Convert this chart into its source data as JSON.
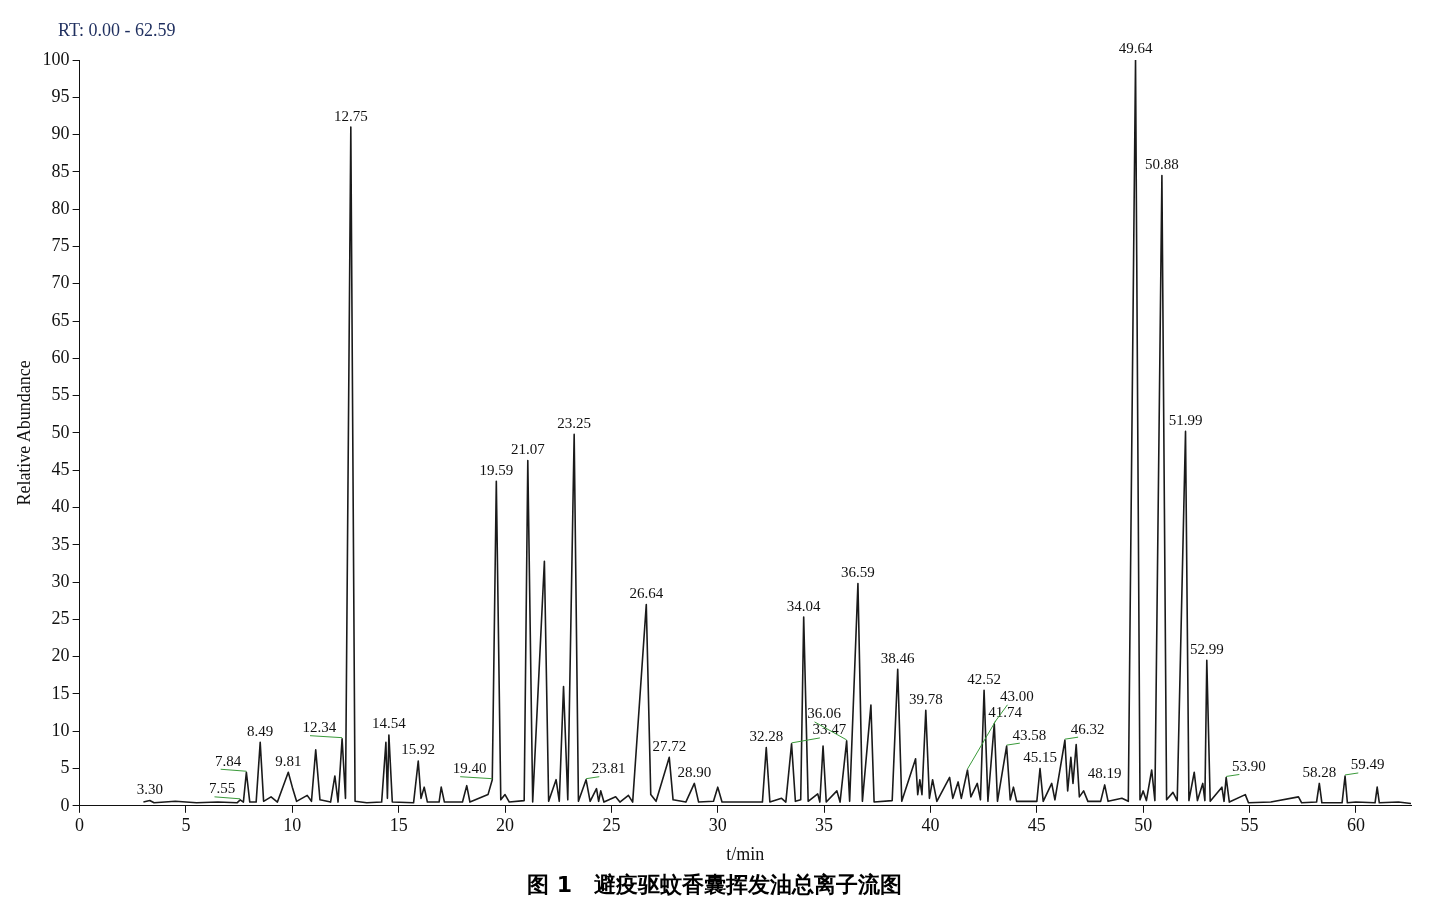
{
  "chart_data": {
    "type": "line",
    "title": "图 1　避疫驱蚊香囊挥发油总离子流图",
    "xlabel": "t/min",
    "ylabel": "Relative Abundance",
    "xlim": [
      0,
      62.59
    ],
    "xticks": [
      0,
      5,
      10,
      15,
      20,
      25,
      30,
      35,
      40,
      45,
      50,
      55,
      60
    ],
    "ylim": [
      0,
      100
    ],
    "yticks": [
      0,
      5,
      10,
      15,
      20,
      25,
      30,
      35,
      40,
      45,
      50,
      55,
      60,
      65,
      70,
      75,
      80,
      85,
      90,
      95,
      100
    ],
    "grid": false,
    "legend": false,
    "marker": "none",
    "line_style": "solid",
    "series": [
      {
        "color": "#1a1a1a",
        "x": [
          3.0,
          3.3,
          3.5,
          4.5,
          5.5,
          6.5,
          7.4,
          7.55,
          7.7,
          7.84,
          8.0,
          8.3,
          8.49,
          8.65,
          9.0,
          9.3,
          9.81,
          10.0,
          10.2,
          10.7,
          10.9,
          11.1,
          11.3,
          11.8,
          12.0,
          12.15,
          12.34,
          12.5,
          12.75,
          12.95,
          13.5,
          14.2,
          14.4,
          14.47,
          14.54,
          14.7,
          15.7,
          15.92,
          16.05,
          16.2,
          16.35,
          16.9,
          17.0,
          17.15,
          18.0,
          18.2,
          18.35,
          19.2,
          19.4,
          19.59,
          19.8,
          20.0,
          20.2,
          20.9,
          21.07,
          21.3,
          21.85,
          22.05,
          22.4,
          22.55,
          22.75,
          22.95,
          23.25,
          23.45,
          23.81,
          24.0,
          24.3,
          24.4,
          24.5,
          24.65,
          25.2,
          25.4,
          25.8,
          26.0,
          26.64,
          26.85,
          27.1,
          27.72,
          27.9,
          28.5,
          28.9,
          29.1,
          29.8,
          30.0,
          30.2,
          31.5,
          32.1,
          32.28,
          32.45,
          33.0,
          33.2,
          33.47,
          33.65,
          33.9,
          34.04,
          34.25,
          34.7,
          34.8,
          34.95,
          35.1,
          35.6,
          35.75,
          36.06,
          36.2,
          36.59,
          36.8,
          37.2,
          37.35,
          38.2,
          38.46,
          38.65,
          39.3,
          39.4,
          39.5,
          39.6,
          39.78,
          39.95,
          40.1,
          40.3,
          40.9,
          41.05,
          41.3,
          41.45,
          41.74,
          41.9,
          42.2,
          42.35,
          42.52,
          42.7,
          43.0,
          43.15,
          43.58,
          43.75,
          43.9,
          44.05,
          45.0,
          45.15,
          45.3,
          45.7,
          45.85,
          46.32,
          46.45,
          46.6,
          46.7,
          46.85,
          47.0,
          47.2,
          47.4,
          48.0,
          48.19,
          48.35,
          49.0,
          49.3,
          49.64,
          49.85,
          50.0,
          50.15,
          50.4,
          50.55,
          50.88,
          51.1,
          51.4,
          51.6,
          51.99,
          52.15,
          52.4,
          52.55,
          52.8,
          52.9,
          52.99,
          53.15,
          53.7,
          53.8,
          53.9,
          54.05,
          54.8,
          54.95,
          56.0,
          57.3,
          57.45,
          58.15,
          58.28,
          58.4,
          59.35,
          59.49,
          59.6,
          60.0,
          60.9,
          61.0,
          61.1,
          62.0,
          62.59
        ],
        "values": [
          0.5,
          0.7,
          0.4,
          0.6,
          0.4,
          0.5,
          0.4,
          0.8,
          0.5,
          4.5,
          0.5,
          0.5,
          8.5,
          0.6,
          1.2,
          0.5,
          4.5,
          2.5,
          0.6,
          1.4,
          0.6,
          7.5,
          0.8,
          0.5,
          4,
          0.5,
          9,
          1,
          91,
          0.6,
          0.4,
          0.5,
          8.5,
          1,
          9.5,
          0.5,
          0.4,
          6,
          1,
          2.5,
          0.5,
          0.5,
          2.5,
          0.5,
          0.5,
          2.7,
          0.5,
          1.5,
          3.5,
          43.5,
          0.8,
          1.5,
          0.5,
          0.7,
          46.3,
          0.5,
          32.8,
          0.6,
          3.5,
          0.6,
          16,
          0.8,
          49.8,
          0.6,
          3.5,
          0.6,
          2.3,
          0.6,
          2,
          0.5,
          1.2,
          0.5,
          1.4,
          0.5,
          27,
          1.5,
          0.6,
          6.5,
          0.8,
          0.5,
          3,
          0.5,
          0.6,
          2.5,
          0.5,
          0.5,
          0.5,
          7.8,
          0.5,
          1,
          0.5,
          8.3,
          0.6,
          0.8,
          25.3,
          0.6,
          1.6,
          0.5,
          8,
          0.5,
          2,
          0.5,
          8.7,
          0.6,
          29.8,
          0.6,
          13.5,
          0.5,
          0.7,
          18.3,
          0.6,
          6.3,
          1.5,
          3.5,
          1.5,
          12.8,
          1,
          3.5,
          0.6,
          3.8,
          1,
          3.2,
          1,
          4.8,
          1.2,
          3,
          0.8,
          15.5,
          0.6,
          11,
          0.6,
          8,
          0.8,
          2.5,
          0.6,
          0.6,
          5,
          0.6,
          3,
          0.8,
          8.8,
          2,
          6.5,
          3,
          8.2,
          1.2,
          2,
          0.6,
          0.6,
          2.8,
          0.6,
          1,
          0.6,
          100,
          0.8,
          2,
          0.7,
          4.8,
          0.7,
          84.5,
          0.8,
          1.8,
          0.7,
          50.2,
          0.7,
          4.5,
          0.7,
          3,
          0.7,
          19.5,
          0.6,
          2.5,
          0.6,
          3.8,
          0.5,
          1.5,
          0.4,
          0.5,
          1.2,
          0.4,
          0.5,
          3,
          0.4,
          0.4,
          4,
          0.4,
          0.5,
          0.4,
          2.5,
          0.4,
          0.5,
          0.3
        ]
      }
    ],
    "annotations": [
      "RT: 0.00 - 62.59",
      {
        "text": "3.30",
        "x": 3.3,
        "y": 0.7
      },
      {
        "text": "7.55",
        "x": 7.55,
        "y": 0.8
      },
      {
        "text": "7.84",
        "x": 7.84,
        "y": 4.5
      },
      {
        "text": "8.49",
        "x": 8.49,
        "y": 8.5
      },
      {
        "text": "9.81",
        "x": 9.81,
        "y": 4.5
      },
      {
        "text": "12.34",
        "x": 12.34,
        "y": 9
      },
      {
        "text": "12.75",
        "x": 12.75,
        "y": 91
      },
      {
        "text": "14.54",
        "x": 14.54,
        "y": 9.5
      },
      {
        "text": "15.92",
        "x": 15.92,
        "y": 6
      },
      {
        "text": "19.40",
        "x": 19.4,
        "y": 3.5
      },
      {
        "text": "19.59",
        "x": 19.59,
        "y": 43.5
      },
      {
        "text": "21.07",
        "x": 21.07,
        "y": 46.3
      },
      {
        "text": "23.25",
        "x": 23.25,
        "y": 49.8
      },
      {
        "text": "23.81",
        "x": 23.81,
        "y": 3.5
      },
      {
        "text": "26.64",
        "x": 26.64,
        "y": 27
      },
      {
        "text": "27.72",
        "x": 27.72,
        "y": 6.5
      },
      {
        "text": "28.90",
        "x": 28.9,
        "y": 3
      },
      {
        "text": "32.28",
        "x": 32.28,
        "y": 7.8
      },
      {
        "text": "33.47",
        "x": 33.47,
        "y": 8.3
      },
      {
        "text": "34.04",
        "x": 34.04,
        "y": 25.3
      },
      {
        "text": "36.06",
        "x": 36.06,
        "y": 8.7
      },
      {
        "text": "36.59",
        "x": 36.59,
        "y": 29.8
      },
      {
        "text": "38.46",
        "x": 38.46,
        "y": 18.3
      },
      {
        "text": "39.78",
        "x": 39.78,
        "y": 12.8
      },
      {
        "text": "41.74",
        "x": 41.74,
        "y": 4.8
      },
      {
        "text": "42.52",
        "x": 42.52,
        "y": 15.5
      },
      {
        "text": "43.00",
        "x": 43.0,
        "y": 11
      },
      {
        "text": "43.58",
        "x": 43.58,
        "y": 8
      },
      {
        "text": "45.15",
        "x": 45.15,
        "y": 5
      },
      {
        "text": "46.32",
        "x": 46.32,
        "y": 8.8
      },
      {
        "text": "48.19",
        "x": 48.19,
        "y": 2.8
      },
      {
        "text": "49.64",
        "x": 49.64,
        "y": 100
      },
      {
        "text": "50.88",
        "x": 50.88,
        "y": 84.5
      },
      {
        "text": "51.99",
        "x": 51.99,
        "y": 50.2
      },
      {
        "text": "52.99",
        "x": 52.99,
        "y": 19.5
      },
      {
        "text": "53.90",
        "x": 53.9,
        "y": 3.8
      },
      {
        "text": "58.28",
        "x": 58.28,
        "y": 3
      },
      {
        "text": "59.49",
        "x": 59.49,
        "y": 4
      }
    ]
  }
}
